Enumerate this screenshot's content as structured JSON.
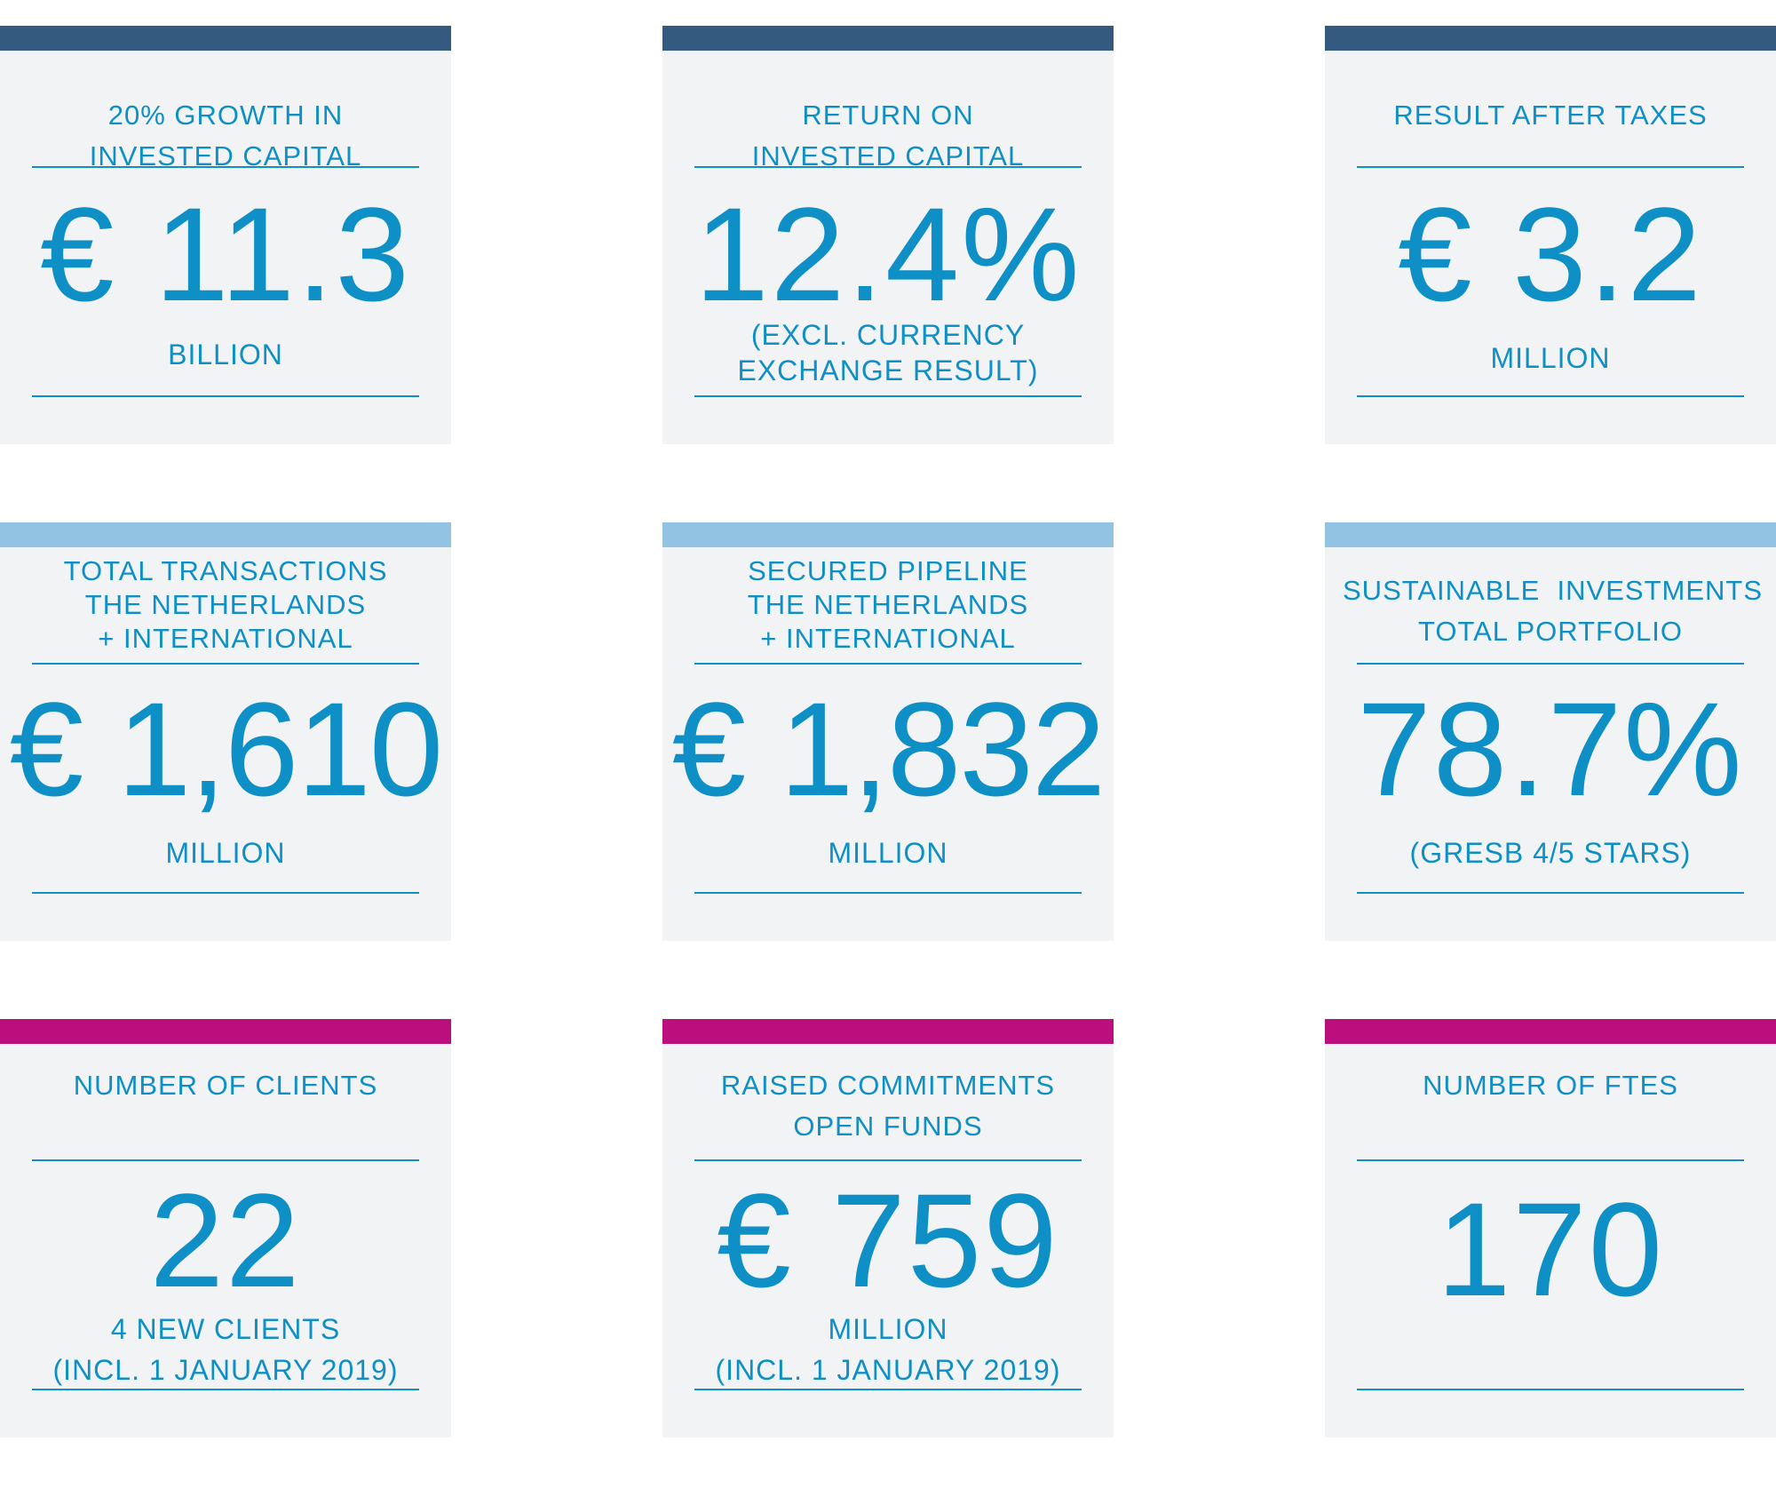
{
  "colors": {
    "card_background": "#f1f3f5",
    "text_blue": "#0e8fc6",
    "row1_bar": "#345a7f",
    "row2_bar": "#93c3e2",
    "row3_bar": "#bb0f7e"
  },
  "cards": [
    {
      "title_line1": "20% GROWTH IN",
      "title_line2": "INVESTED CAPITAL",
      "value": "€ 11.3",
      "sub_line1": "BILLION",
      "sub_line2": ""
    },
    {
      "title_line1": "RETURN ON",
      "title_line2": "INVESTED CAPITAL",
      "value": "12.4%",
      "sub_line1": "(EXCL. CURRENCY",
      "sub_line2": "EXCHANGE RESULT)"
    },
    {
      "title_line1": "RESULT AFTER TAXES",
      "title_line2": "",
      "value": "€ 3.2",
      "sub_line1": "MILLION",
      "sub_line2": ""
    },
    {
      "title_line1": "TOTAL TRANSACTIONS",
      "title_line2": "THE NETHERLANDS",
      "title_line3": "+ INTERNATIONAL",
      "value": "€ 1,610",
      "sub_line1": "MILLION",
      "sub_line2": ""
    },
    {
      "title_line1": "SECURED PIPELINE",
      "title_line2": "THE NETHERLANDS",
      "title_line3": "+ INTERNATIONAL",
      "value": "€ 1,832",
      "sub_line1": "MILLION",
      "sub_line2": ""
    },
    {
      "title_line1": "SUSTAINABLE  INVESTMENTS",
      "title_line2": "TOTAL PORTFOLIO",
      "value": "78.7%",
      "sub_line1": "(GRESB 4/5 STARS)",
      "sub_line2": ""
    },
    {
      "title_line1": "NUMBER OF CLIENTS",
      "title_line2": "",
      "value": "22",
      "sub_line1": "4 NEW CLIENTS",
      "sub_line2": "(INCL. 1 JANUARY 2019)"
    },
    {
      "title_line1": "RAISED COMMITMENTS",
      "title_line2": "OPEN FUNDS",
      "value": "€ 759",
      "sub_line1": "MILLION",
      "sub_line2": "(INCL. 1 JANUARY 2019)"
    },
    {
      "title_line1": "NUMBER OF FTES",
      "title_line2": "",
      "value": "170",
      "sub_line1": "",
      "sub_line2": ""
    }
  ]
}
